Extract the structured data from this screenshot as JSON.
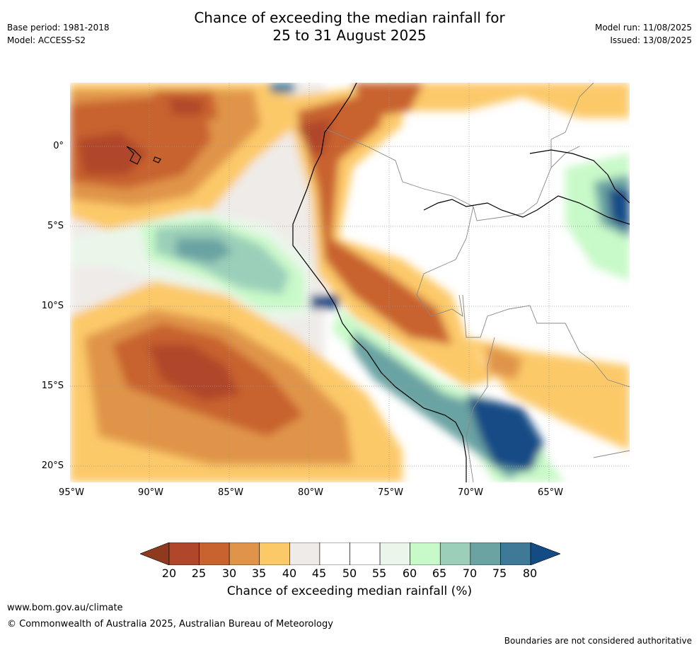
{
  "title": {
    "line1": "Chance of exceeding the median rainfall for",
    "line2": "25 to 31 August 2025"
  },
  "meta_left": {
    "base_period": "Base period: 1981-2018",
    "model": "Model: ACCESS-S2"
  },
  "meta_right": {
    "model_run": "Model run: 11/08/2025",
    "issued": "Issued: 13/08/2025"
  },
  "map": {
    "lat_labels": [
      "0°",
      "5°S",
      "10°S",
      "15°S",
      "20°S"
    ],
    "lon_labels": [
      "95°W",
      "90°W",
      "85°W",
      "80°W",
      "75°W",
      "70°W",
      "65°W"
    ],
    "colors": {
      "c20": "#8f3a1e",
      "c25": "#b0472a",
      "c30": "#c8622f",
      "c35": "#e0944a",
      "c40": "#fcc969",
      "c45": "#efebe8",
      "c50": "#ffffff",
      "c55": "#ffffff",
      "c60": "#eaf6ea",
      "c65": "#c8f9c8",
      "c70": "#9bcfb9",
      "c75": "#6ba3a3",
      "c80": "#3e7a97",
      "c85": "#134c85"
    }
  },
  "colorbar": {
    "ticks": [
      "20",
      "25",
      "30",
      "35",
      "40",
      "45",
      "50",
      "55",
      "60",
      "65",
      "70",
      "75",
      "80"
    ],
    "label": "Chance of exceeding median rainfall (%)"
  },
  "footer": {
    "url": "www.bom.gov.au/climate",
    "copyright": "© Commonwealth of Australia 2025, Australian Bureau of Meteorology",
    "disclaimer": "Boundaries are not considered authoritative"
  }
}
